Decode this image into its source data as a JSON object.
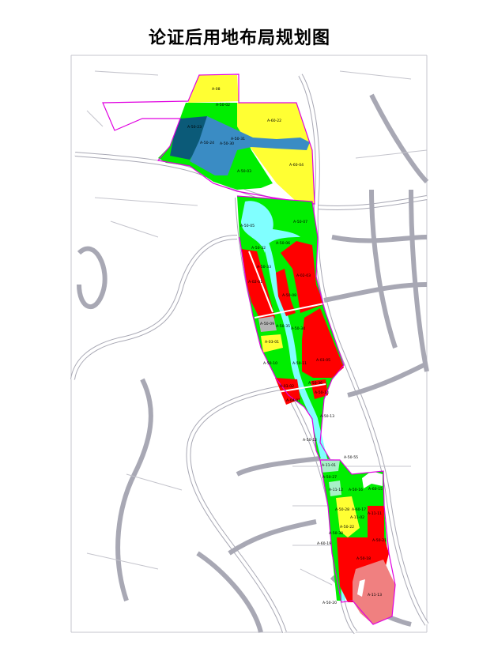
{
  "title": "论证后用地布局规划图",
  "colors": {
    "green_space": "#00ee00",
    "water": "#80ffff",
    "residential": "#ffff33",
    "commercial": "#ff0000",
    "commercial_light": "#f08080",
    "lake_blue": "#3a8cc4",
    "lake_dark": "#0b5a78",
    "light_green": "#a8f0c8",
    "gray": "#b4b4b4",
    "boundary": "#e000e0",
    "road": "#a8a8b4"
  },
  "labels": {
    "l01": "A-08",
    "l02": "A-50-02",
    "l03": "A-60-22",
    "l04": "A-50-23",
    "l05": "A-50-24",
    "l06": "A-50-30",
    "l07": "A-50-31",
    "l08": "A-50-03",
    "l09": "A-60-04",
    "l10": "A-50-05",
    "l11": "A-50-07",
    "l12": "A-50-32",
    "l13": "A-50-06",
    "l14": "A-50-33",
    "l15": "A-02-01",
    "l16": "A-02-03",
    "l17": "A-50-08",
    "l18": "A-50-09",
    "l19": "A-50-35",
    "l20": "A-50-34",
    "l21": "A-03-01",
    "l22": "A-50-10",
    "l23": "A-50-11",
    "l24": "A-03-05",
    "l25": "A-03-02",
    "l26": "A-50-36",
    "l27": "A-50-14",
    "l28": "A-04-01",
    "l29": "A-50-13",
    "l30": "A-50-12",
    "l31": "A-50-55",
    "l32": "A-11-01",
    "l33": "A-50-27",
    "l34": "A-11-12",
    "l35": "A-50-16",
    "l36": "A-60-15",
    "l37": "A-50-28",
    "l38": "A-60-17",
    "l39": "A-11-11",
    "l40": "A-11-02",
    "l41": "A-50-22",
    "l42": "A-50-38",
    "l43": "A-50-21",
    "l44": "A-60-19",
    "l45": "A-50-18",
    "l46": "A-11-13",
    "l47": "A-50-20"
  }
}
